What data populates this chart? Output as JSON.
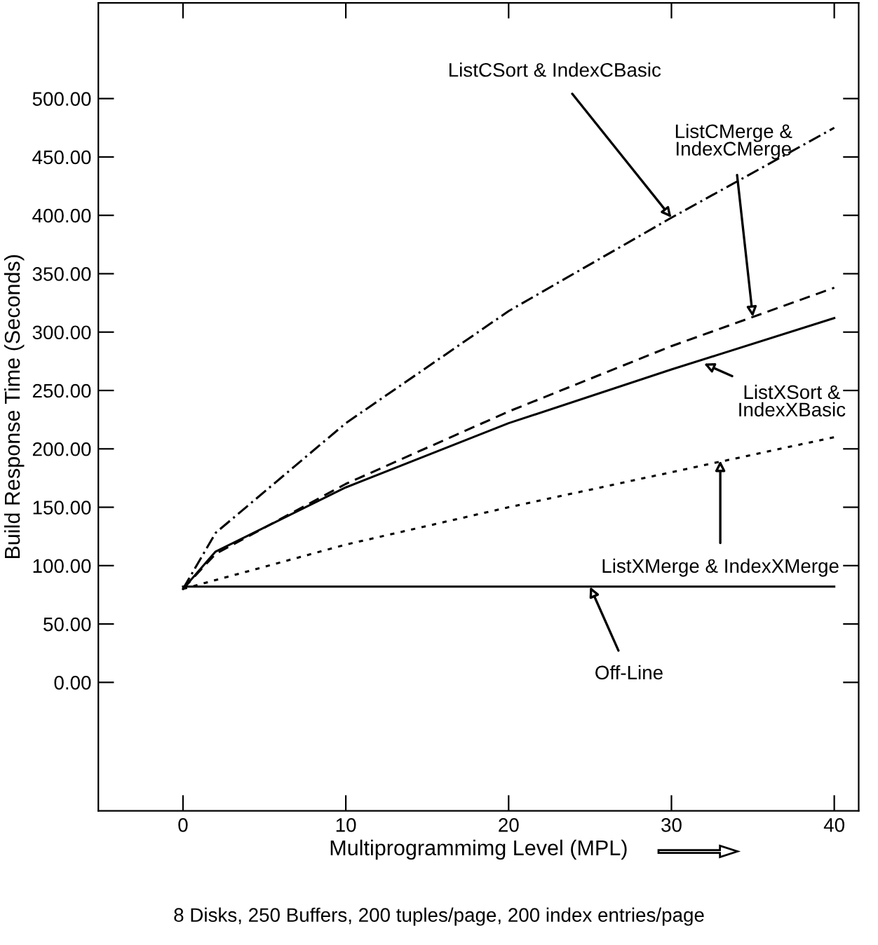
{
  "chart_data": {
    "type": "line",
    "xlabel": "Multiprogrammimg Level (MPL)",
    "ylabel": "Build Response Time (Seconds)",
    "xlim": [
      -5.2,
      41.5
    ],
    "ylim": [
      -110,
      582
    ],
    "xticks": [
      0,
      10,
      20,
      30,
      40
    ],
    "yticks": [
      {
        "value": 0,
        "label": "0.00"
      },
      {
        "value": 50,
        "label": "50.00"
      },
      {
        "value": 100,
        "label": "100.00"
      },
      {
        "value": 150,
        "label": "150.00"
      },
      {
        "value": 200,
        "label": "200.00"
      },
      {
        "value": 250,
        "label": "250.00"
      },
      {
        "value": 300,
        "label": "300.00"
      },
      {
        "value": 350,
        "label": "350.00"
      },
      {
        "value": 400,
        "label": "400.00"
      },
      {
        "value": 450,
        "label": "450.00"
      },
      {
        "value": 500,
        "label": "500.00"
      }
    ],
    "grid": false,
    "legend": false,
    "marker": "none",
    "series": [
      {
        "color": "#000000",
        "line_style": "dashdot",
        "x": [
          0,
          2,
          10,
          20,
          30,
          40
        ],
        "values": [
          80,
          128,
          222,
          318,
          398,
          475
        ]
      },
      {
        "color": "#000000",
        "line_style": "dashed",
        "x": [
          0,
          2,
          10,
          20,
          30,
          40
        ],
        "values": [
          80,
          110,
          170,
          232,
          288,
          338
        ]
      },
      {
        "color": "#000000",
        "line_style": "solid",
        "x": [
          0,
          2,
          10,
          20,
          30,
          40
        ],
        "values": [
          80,
          112,
          167,
          222,
          268,
          312
        ]
      },
      {
        "color": "#000000",
        "line_style": "dotted",
        "x": [
          0,
          10,
          20,
          30,
          40
        ],
        "values": [
          80,
          118,
          150,
          180,
          210
        ]
      },
      {
        "color": "#000000",
        "line_style": "solid",
        "x": [
          0,
          40
        ],
        "values": [
          82,
          82
        ]
      }
    ],
    "annotations": [
      {
        "text": "ListCSort & IndexCBasic",
        "x": 30,
        "y": 398
      },
      {
        "text": "ListCMerge &\nIndexCMerge",
        "x": 35,
        "y": 313
      },
      {
        "text": "ListXSort &\nIndexXBasic",
        "x": 32,
        "y": 273
      },
      {
        "text": "ListXMerge & IndexXMerge",
        "x": 33,
        "y": 190
      },
      {
        "text": "Off-Line",
        "x": 25,
        "y": 82
      },
      "8 Disks, 250 Buffers, 200 tuples/page, 200 index entries/page"
    ]
  }
}
